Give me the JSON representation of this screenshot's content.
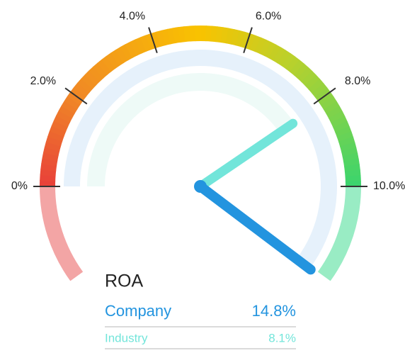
{
  "chart_data": {
    "type": "gauge",
    "title": "ROA",
    "ylim": [
      -2,
      12
    ],
    "yticks": [
      {
        "value": 0,
        "label": "0%"
      },
      {
        "value": 2,
        "label": "2.0%"
      },
      {
        "value": 4,
        "label": "4.0%"
      },
      {
        "value": 6,
        "label": "6.0%"
      },
      {
        "value": 8,
        "label": "8.0%"
      },
      {
        "value": 10,
        "label": "10.0%"
      }
    ],
    "series": [
      {
        "name": "Company",
        "color": "#2394df",
        "values": [
          14.8
        ],
        "value_labels": [
          "14.8%"
        ]
      },
      {
        "name": "Industry",
        "color": "#72e5da",
        "values": [
          8.1
        ],
        "value_labels": [
          "8.1%"
        ]
      }
    ]
  }
}
